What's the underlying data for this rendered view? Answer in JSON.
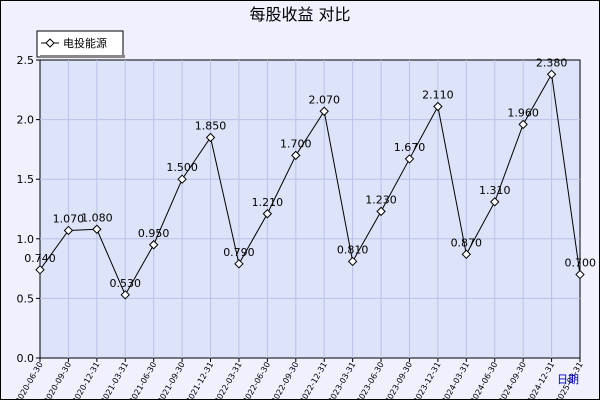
{
  "chart_data": {
    "type": "line",
    "title": "每股收益 对比",
    "xlabel": "日期",
    "ylabel": "",
    "ylim": [
      0,
      2.5
    ],
    "yticks": [
      "0.0",
      "0.5",
      "1.0",
      "1.5",
      "2.0",
      "2.5"
    ],
    "grid": true,
    "legend": "top-left",
    "categories": [
      "2020-06-30",
      "2020-09-30",
      "2020-12-31",
      "2021-03-31",
      "2021-06-30",
      "2021-09-30",
      "2021-12-31",
      "2022-03-31",
      "2022-06-30",
      "2022-09-30",
      "2022-12-31",
      "2023-03-31",
      "2023-06-30",
      "2023-09-30",
      "2023-12-31",
      "2024-03-31",
      "2024-06-30",
      "2024-09-30",
      "2024-12-31",
      "2025-03-31"
    ],
    "series": [
      {
        "name": "电投能源",
        "color": "#000000",
        "values": [
          0.74,
          1.07,
          1.08,
          0.53,
          0.95,
          1.5,
          1.85,
          0.79,
          1.21,
          1.7,
          2.07,
          0.81,
          1.23,
          1.67,
          2.11,
          0.87,
          1.31,
          1.96,
          2.38,
          0.7
        ],
        "labels": [
          "0.740",
          "1.070",
          "1.080",
          "0.530",
          "0.950",
          "1.500",
          "1.850",
          "0.790",
          "1.210",
          "1.700",
          "2.070",
          "0.810",
          "1.230",
          "1.670",
          "2.110",
          "0.870",
          "1.310",
          "1.960",
          "2.380",
          "0.700"
        ]
      }
    ],
    "colors": {
      "plot_bg": "#dde3f8",
      "outer_bg": "#f0f0ff",
      "grid": "#b8c2e8"
    }
  }
}
